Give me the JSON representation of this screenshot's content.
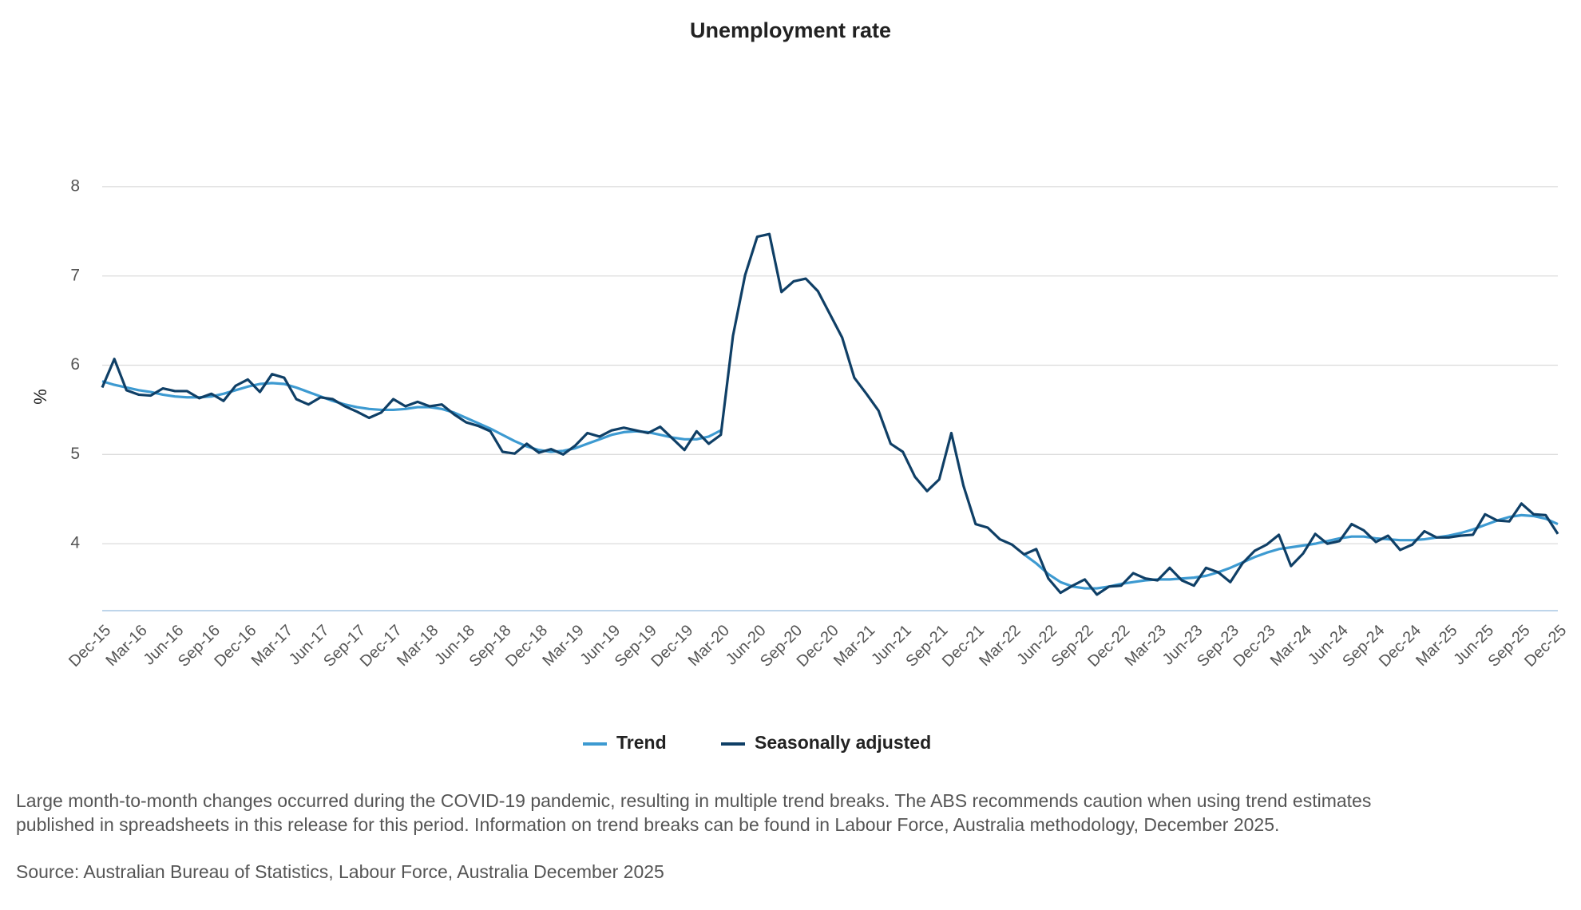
{
  "chart_data": {
    "type": "line",
    "title": "Unemployment rate",
    "y_label": "%",
    "categories": [
      "Dec-15",
      null,
      null,
      "Mar-16",
      null,
      null,
      "Jun-16",
      null,
      null,
      "Sep-16",
      null,
      null,
      "Dec-16",
      null,
      null,
      "Mar-17",
      null,
      null,
      "Jun-17",
      null,
      null,
      "Sep-17",
      null,
      null,
      "Dec-17",
      null,
      null,
      "Mar-18",
      null,
      null,
      "Jun-18",
      null,
      null,
      "Sep-18",
      null,
      null,
      "Dec-18",
      null,
      null,
      "Mar-19",
      null,
      null,
      "Jun-19",
      null,
      null,
      "Sep-19",
      null,
      null,
      "Dec-19",
      null,
      null,
      "Mar-20",
      null,
      null,
      "Jun-20",
      null,
      null,
      "Sep-20",
      null,
      null,
      "Dec-20",
      null,
      null,
      "Mar-21",
      null,
      null,
      "Jun-21",
      null,
      null,
      "Sep-21",
      null,
      null,
      "Dec-21",
      null,
      null,
      "Mar-22",
      null,
      null,
      "Jun-22",
      null,
      null,
      "Sep-22",
      null,
      null,
      "Dec-22",
      null,
      null,
      "Mar-23",
      null,
      null,
      "Jun-23",
      null,
      null,
      "Sep-23",
      null,
      null,
      "Dec-23",
      null,
      null,
      "Mar-24",
      null,
      null,
      "Jun-24",
      null,
      null,
      "Sep-24",
      null,
      null,
      "Dec-24",
      null,
      null,
      "Mar-25",
      null,
      null,
      "Jun-25",
      null,
      null,
      "Sep-25",
      null,
      null,
      "Dec-25"
    ],
    "series": [
      {
        "name": "Trend",
        "color": "#3d9ad1",
        "values": [
          5.82,
          5.78,
          5.75,
          5.72,
          5.7,
          5.67,
          5.65,
          5.64,
          5.64,
          5.65,
          5.68,
          5.72,
          5.76,
          5.79,
          5.8,
          5.79,
          5.75,
          5.7,
          5.65,
          5.6,
          5.56,
          5.53,
          5.51,
          5.5,
          5.5,
          5.51,
          5.53,
          5.53,
          5.51,
          5.47,
          5.41,
          5.35,
          5.29,
          5.22,
          5.15,
          5.09,
          5.05,
          5.03,
          5.04,
          5.07,
          5.12,
          5.17,
          5.22,
          5.25,
          5.26,
          5.25,
          5.22,
          5.19,
          5.17,
          5.17,
          5.2,
          5.27,
          null,
          null,
          null,
          null,
          null,
          null,
          null,
          null,
          null,
          null,
          null,
          null,
          null,
          null,
          null,
          null,
          null,
          null,
          null,
          null,
          null,
          null,
          null,
          null,
          3.88,
          3.78,
          3.66,
          3.57,
          3.52,
          3.5,
          3.5,
          3.52,
          3.55,
          3.57,
          3.59,
          3.6,
          3.6,
          3.61,
          3.62,
          3.64,
          3.68,
          3.73,
          3.79,
          3.85,
          3.9,
          3.94,
          3.96,
          3.98,
          4.0,
          4.03,
          4.06,
          4.08,
          4.08,
          4.06,
          4.05,
          4.04,
          4.04,
          4.05,
          4.07,
          4.09,
          4.12,
          4.16,
          4.21,
          4.26,
          4.3,
          4.32,
          4.31,
          4.28,
          4.22
        ]
      },
      {
        "name": "Seasonally adjusted",
        "color": "#0f3f66",
        "values": [
          5.75,
          6.07,
          5.72,
          5.67,
          5.66,
          5.74,
          5.71,
          5.71,
          5.63,
          5.68,
          5.6,
          5.77,
          5.84,
          5.7,
          5.9,
          5.86,
          5.62,
          5.56,
          5.64,
          5.62,
          5.54,
          5.48,
          5.41,
          5.47,
          5.62,
          5.54,
          5.59,
          5.54,
          5.56,
          5.45,
          5.36,
          5.32,
          5.26,
          5.03,
          5.01,
          5.12,
          5.02,
          5.06,
          5.0,
          5.1,
          5.24,
          5.2,
          5.27,
          5.3,
          5.27,
          5.24,
          5.31,
          5.18,
          5.05,
          5.26,
          5.12,
          5.22,
          6.33,
          7.01,
          7.44,
          7.47,
          6.82,
          6.94,
          6.97,
          6.83,
          6.57,
          6.31,
          5.86,
          5.68,
          5.49,
          5.12,
          5.03,
          4.75,
          4.59,
          4.72,
          5.24,
          4.65,
          4.22,
          4.18,
          4.05,
          3.99,
          3.88,
          3.94,
          3.61,
          3.45,
          3.53,
          3.6,
          3.43,
          3.52,
          3.53,
          3.67,
          3.61,
          3.59,
          3.73,
          3.59,
          3.53,
          3.73,
          3.68,
          3.57,
          3.78,
          3.92,
          3.99,
          4.1,
          3.75,
          3.89,
          4.11,
          4.0,
          4.03,
          4.22,
          4.15,
          4.02,
          4.09,
          3.93,
          3.99,
          4.14,
          4.07,
          4.07,
          4.09,
          4.1,
          4.33,
          4.26,
          4.25,
          4.45,
          4.33,
          4.32,
          4.11
        ]
      }
    ],
    "ylim": [
      3.25,
      8.5
    ],
    "yticks": [
      4,
      5,
      6,
      7,
      8
    ],
    "grid": true,
    "legend": "bottom",
    "notes": [
      "Large month-to-month changes occurred during the COVID-19 pandemic, resulting in multiple trend breaks. The ABS recommends caution when using trend estimates published in spreadsheets in this release for this period. Information on trend breaks can be found in Labour Force, Australia methodology, December 2025.",
      "Source: Australian Bureau of Statistics, Labour Force, Australia December 2025"
    ]
  }
}
